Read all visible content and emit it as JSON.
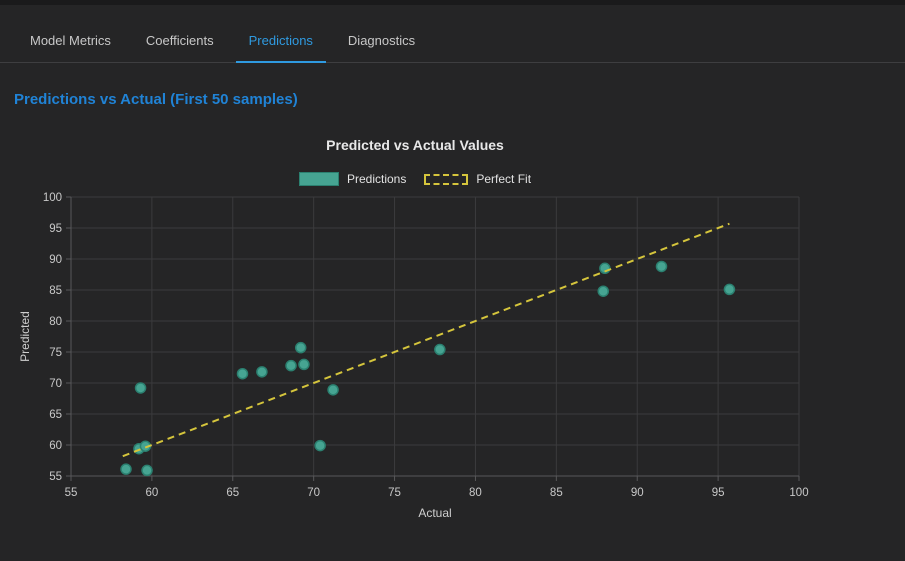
{
  "ui": {
    "accent_blue": "#2f9ae0",
    "heading_blue": "#2083d6",
    "background": "#252526",
    "topstrip": "#1a1a1b"
  },
  "tabs": {
    "items": [
      {
        "label": "Model Metrics",
        "active": false
      },
      {
        "label": "Coefficients",
        "active": false
      },
      {
        "label": "Predictions",
        "active": true
      },
      {
        "label": "Diagnostics",
        "active": false
      }
    ]
  },
  "page": {
    "heading": "Predictions vs Actual (First 50 samples)"
  },
  "chart_data": {
    "type": "scatter",
    "title": "Predicted vs Actual Values",
    "xlabel": "Actual",
    "ylabel": "Predicted",
    "xlim": [
      55,
      100
    ],
    "ylim": [
      55,
      100
    ],
    "x_ticks": [
      55,
      60,
      65,
      70,
      75,
      80,
      85,
      90,
      95,
      100
    ],
    "y_ticks": [
      55,
      60,
      65,
      70,
      75,
      80,
      85,
      90,
      95,
      100
    ],
    "grid": true,
    "legend_position": "top-center",
    "colors": {
      "grid": "#3b3b3d",
      "axis": "#58585a",
      "tick_label": "#c9c9c9",
      "axis_label": "#cfcfcf",
      "title": "#e8e8e8"
    },
    "legend": [
      {
        "label": "Predictions",
        "type": "box",
        "color": "#46a492",
        "border": "#2b8070"
      },
      {
        "label": "Perfect Fit",
        "type": "dashed-line",
        "color": "#d5c53c"
      }
    ],
    "series": [
      {
        "name": "Predictions",
        "type": "scatter",
        "marker": "circle",
        "marker_fill": "#46a492",
        "marker_stroke": "#2b8070",
        "points": [
          [
            58.4,
            56.1
          ],
          [
            59.7,
            55.9
          ],
          [
            59.2,
            59.4
          ],
          [
            59.6,
            59.8
          ],
          [
            59.3,
            69.2
          ],
          [
            65.6,
            71.5
          ],
          [
            66.8,
            71.8
          ],
          [
            68.6,
            72.8
          ],
          [
            69.4,
            73.0
          ],
          [
            69.2,
            75.7
          ],
          [
            70.4,
            59.9
          ],
          [
            71.2,
            68.9
          ],
          [
            77.8,
            75.4
          ],
          [
            87.9,
            84.8
          ],
          [
            88.0,
            88.5
          ],
          [
            91.5,
            88.8
          ],
          [
            95.7,
            85.1
          ]
        ]
      },
      {
        "name": "Perfect Fit",
        "type": "line",
        "dashed": true,
        "color": "#d5c53c",
        "points": [
          [
            58.2,
            58.2
          ],
          [
            95.7,
            95.7
          ]
        ]
      }
    ]
  }
}
